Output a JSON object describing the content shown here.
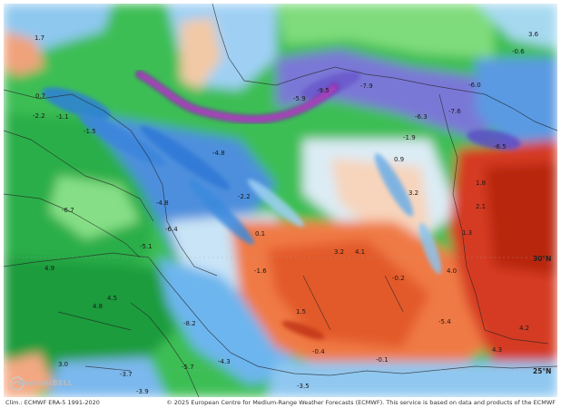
{
  "credits": {
    "climatology": "Clim.: ECMWF ERA-5 1991-2020",
    "copyright": "© 2025 European Centre for Medium-Range Weather Forecasts (ECMWF). This service is based on data and products of the ECMWF"
  },
  "watermark": {
    "text": "WeatherBELL"
  },
  "map_values": [
    {
      "label": "1.7"
    },
    {
      "label": "3.6"
    },
    {
      "label": "-0.6"
    },
    {
      "label": "0.7"
    },
    {
      "label": "-2.2"
    },
    {
      "label": "-1.1"
    },
    {
      "label": "-1.5"
    },
    {
      "label": "-5.9"
    },
    {
      "label": "-9.5"
    },
    {
      "label": "-7.9"
    },
    {
      "label": "-6.0"
    },
    {
      "label": "-6.3"
    },
    {
      "label": "-4.8"
    },
    {
      "label": "-1.9"
    },
    {
      "label": "-7.6"
    },
    {
      "label": "-6.5"
    },
    {
      "label": "0.9"
    },
    {
      "label": "3.2"
    },
    {
      "label": "2.1"
    },
    {
      "label": "1.8"
    },
    {
      "label": "-6.4"
    },
    {
      "label": "-4.8"
    },
    {
      "label": "-5.1"
    },
    {
      "label": "-2.2"
    },
    {
      "label": "0.1"
    },
    {
      "label": "3.2"
    },
    {
      "label": "4.1"
    },
    {
      "label": "1.3"
    },
    {
      "label": "4.9"
    },
    {
      "label": "4.0"
    },
    {
      "label": "4.5"
    },
    {
      "label": "4.8"
    },
    {
      "label": "-1.6"
    },
    {
      "label": "-0.2"
    },
    {
      "label": "1.5"
    },
    {
      "label": "-5.4"
    },
    {
      "label": "4.2"
    },
    {
      "label": "-8.2"
    },
    {
      "label": "-0.4"
    },
    {
      "label": "4.3"
    },
    {
      "label": "3.0"
    },
    {
      "label": "-3.7"
    },
    {
      "label": "-3.9"
    },
    {
      "label": "-3.5"
    },
    {
      "label": "-5.7"
    },
    {
      "label": "-6.7"
    },
    {
      "label": "-4.3"
    },
    {
      "label": "-0.1"
    }
  ],
  "latitude_labels": [
    {
      "label": "25°N"
    },
    {
      "label": "30°N"
    }
  ],
  "colors": {
    "deep_green": "#1c9b3c",
    "green": "#3cbe54",
    "light_green": "#8fe28a",
    "pale": "#e4f0f6",
    "light_blue": "#9fd0f4",
    "blue": "#3f8ede",
    "deep_blue": "#2a5fc4",
    "purple": "#7a4fd0",
    "magenta": "#b23ab8",
    "salmon": "#f4a882",
    "orange": "#ef6a33",
    "red": "#d63a1f",
    "deep_red": "#b8220f"
  }
}
